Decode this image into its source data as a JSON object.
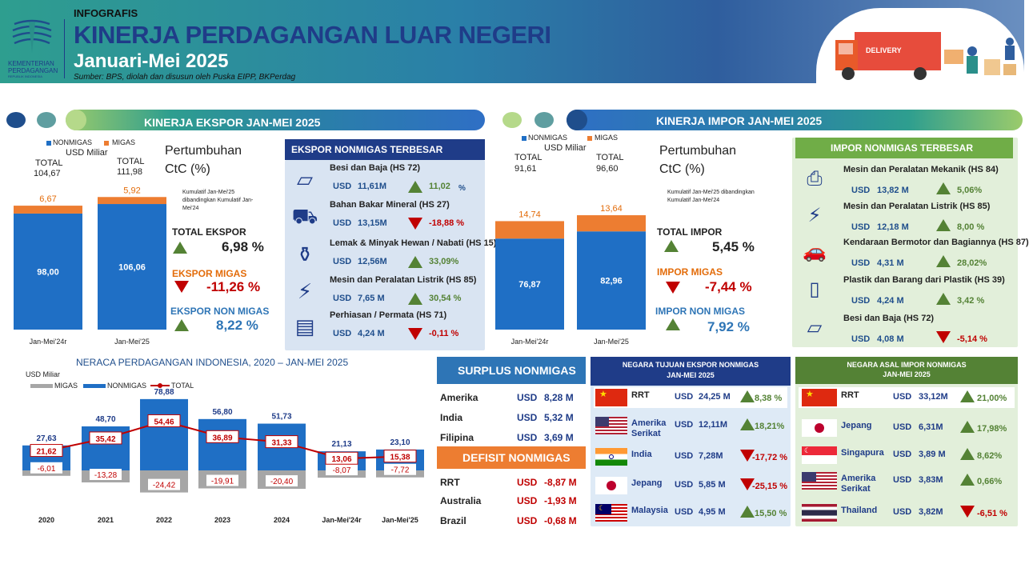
{
  "header": {
    "kicker": "INFOGRAFIS",
    "title": "KINERJA PERDAGANGAN LUAR NEGERI",
    "subtitle": "Januari-Mei 2025",
    "source": "Sumber: BPS, diolah dan disusun oleh Puska EIPP, BKPerdag",
    "logo_text": [
      "KEMENTERIAN",
      "PERDAGANGAN",
      "REPUBLIK INDONESIA"
    ],
    "truck_label": "DELIVERY",
    "colors": {
      "teal": "#2A8F8A",
      "navy": "#1F3C88"
    }
  },
  "ekspor": {
    "banner": "KINERJA EKSPOR JAN-MEI 2025",
    "legend": {
      "nonmigas": "NONMIGAS",
      "migas": "MIGAS",
      "unit": "USD Miliar"
    },
    "totals": [
      {
        "label": "TOTAL",
        "value": "104,67"
      },
      {
        "label": "TOTAL",
        "value": "111,98"
      }
    ],
    "pertumbuhan_title": [
      "Pertumbuhan",
      "CtC (%)"
    ],
    "note": "Kumulatif Jan-Mei'25 dibandingkan Kumulatif Jan-Mei'24",
    "total_label": "TOTAL EKSPOR",
    "total_value": "6,98 %",
    "migas_label": "EKSPOR MIGAS",
    "migas_value": "-11,26 %",
    "nonmigas_label": "EKSPOR NON MIGAS",
    "nonmigas_value": "8,22 %"
  },
  "ekspor_top": {
    "title": "EKSPOR NONMIGAS TERBESAR",
    "items": [
      {
        "name": "Besi dan Baja (HS 72)",
        "usd": "USD",
        "val": "11,61M",
        "pct": "11,02",
        "pct_suffix": "%",
        "dir": "up",
        "icon": "steel-icon"
      },
      {
        "name": "Bahan Bakar Mineral (HS 27)",
        "usd": "USD",
        "val": "13,15M",
        "pct": "-18,88 %",
        "pct_suffix": "",
        "dir": "down",
        "icon": "coal-cart-icon"
      },
      {
        "name": "Lemak & Minyak Hewan / Nabati (HS 15)",
        "usd": "USD",
        "val": "12,56M",
        "pct": "33,09%",
        "pct_suffix": "",
        "dir": "up",
        "icon": "oil-bottle-icon"
      },
      {
        "name": "Mesin dan Peralatan Listrik (HS 85)",
        "usd": "USD",
        "val": "7,65 M",
        "pct": "30,54 %",
        "pct_suffix": "",
        "dir": "up",
        "icon": "electric-plug-icon"
      },
      {
        "name": "Perhiasan / Permata (HS 71)",
        "usd": "USD",
        "val": "4,24 M",
        "pct": "-0,11 %",
        "pct_suffix": "",
        "dir": "down",
        "icon": "gold-bars-icon"
      }
    ]
  },
  "impor": {
    "banner": "KINERJA IMPOR JAN-MEI 2025",
    "legend": {
      "nonmigas": "NONMIGAS",
      "migas": "MIGAS",
      "unit": "USD Miliar"
    },
    "totals": [
      {
        "label": "TOTAL",
        "value": "91,61"
      },
      {
        "label": "TOTAL",
        "value": "96,60"
      }
    ],
    "pertumbuhan_title": [
      "Pertumbuhan",
      "CtC (%)"
    ],
    "note": "Kumulatif Jan-Mei'25 dibandingkan Kumulatif Jan-Mei'24",
    "total_label": "TOTAL IMPOR",
    "total_value": "5,45 %",
    "migas_label": "IMPOR MIGAS",
    "migas_value": "-7,44 %",
    "nonmigas_label": "IMPOR NON MIGAS",
    "nonmigas_value": "7,92 %"
  },
  "impor_top": {
    "title": "IMPOR NONMIGAS TERBESAR",
    "items": [
      {
        "name": "Mesin dan Peralatan Mekanik (HS 84)",
        "usd": "USD",
        "val": "13,82 M",
        "pct": "5,06%",
        "dir": "up",
        "icon": "printer-machine-icon"
      },
      {
        "name": "Mesin dan Peralatan Listrik (HS 85)",
        "usd": "USD",
        "val": "12,18 M",
        "pct": "8,00 %",
        "dir": "up",
        "icon": "electric-plug-icon"
      },
      {
        "name": "Kendaraan Bermotor dan Bagiannya (HS 87)",
        "usd": "USD",
        "val": "4,31 M",
        "pct": "28,02%",
        "dir": "up",
        "icon": "car-icon"
      },
      {
        "name": "Plastik dan Barang dari Plastik (HS 39)",
        "usd": "USD",
        "val": "4,24 M",
        "pct": "3,42 %",
        "dir": "up",
        "icon": "plastic-bottles-icon"
      },
      {
        "name": "Besi dan Baja (HS 72)",
        "usd": "USD",
        "val": "4,08 M",
        "pct": "-5,14 %",
        "dir": "down",
        "icon": "steel-icon"
      }
    ]
  },
  "neraca": {
    "title": "NERACA PERDAGANGAN INDONESIA, 2020  – JAN-MEI 2025",
    "unit": "USD Miliar",
    "legend": {
      "migas": "MIGAS",
      "nonmigas": "NONMIGAS",
      "total": "TOTAL"
    }
  },
  "surplus": {
    "title": "SURPLUS NONMIGAS",
    "rows": [
      {
        "c": "Amerika",
        "u": "USD",
        "v": "8,28 M"
      },
      {
        "c": "India",
        "u": "USD",
        "v": "5,32 M"
      },
      {
        "c": "Filipina",
        "u": "USD",
        "v": "3,69 M"
      }
    ]
  },
  "defisit": {
    "title": "DEFISIT NONMIGAS",
    "rows": [
      {
        "c": "RRT",
        "u": "USD",
        "v": "-8,87 M"
      },
      {
        "c": "Australia",
        "u": "USD",
        "v": "-1,93 M"
      },
      {
        "c": "Brazil",
        "u": "USD",
        "v": "-0,68 M"
      }
    ]
  },
  "tujuan": {
    "title": [
      "NEGARA TUJUAN EKSPOR NONMIGAS",
      "JAN-MEI 2025"
    ],
    "rows": [
      {
        "c": "RRT",
        "u": "USD",
        "v": "24,25 M",
        "p": "8,38 %",
        "dir": "up",
        "flag": "china"
      },
      {
        "c": "Amerika Serikat",
        "u": "USD",
        "v": "12,11M",
        "p": "18,21%",
        "dir": "up",
        "flag": "usa"
      },
      {
        "c": "India",
        "u": "USD",
        "v": "7,28M",
        "p": "-17,72 %",
        "dir": "down",
        "flag": "india"
      },
      {
        "c": "Jepang",
        "u": "USD",
        "v": "5,85 M",
        "p": "-25,15 %",
        "dir": "down",
        "flag": "japan"
      },
      {
        "c": "Malaysia",
        "u": "USD",
        "v": "4,95 M",
        "p": "15,50 %",
        "dir": "up",
        "flag": "malaysia"
      }
    ]
  },
  "asal": {
    "title": [
      "NEGARA ASAL IMPOR NONMIGAS",
      "JAN-MEI 2025"
    ],
    "rows": [
      {
        "c": "RRT",
        "u": "USD",
        "v": "33,12M",
        "p": "21,00%",
        "dir": "up",
        "flag": "china"
      },
      {
        "c": "Jepang",
        "u": "USD",
        "v": "6,31M",
        "p": "17,98%",
        "dir": "up",
        "flag": "japan"
      },
      {
        "c": "Singapura",
        "u": "USD",
        "v": "3,89 M",
        "p": "8,62%",
        "dir": "up",
        "flag": "singapore"
      },
      {
        "c": "Amerika Serikat",
        "u": "USD",
        "v": "3,83M",
        "p": "0,66%",
        "dir": "up",
        "flag": "usa"
      },
      {
        "c": "Thailand",
        "u": "USD",
        "v": "3,82M",
        "p": "-6,51 %",
        "dir": "down",
        "flag": "thailand"
      }
    ]
  },
  "chart_data": [
    {
      "type": "bar",
      "title": "",
      "categories": [
        "Jan-Mei'24r",
        "Jan-Mei'25"
      ],
      "series": [
        {
          "name": "NONMIGAS",
          "values": [
            98.0,
            106.06
          ],
          "labels": [
            "98,00",
            "106,06"
          ]
        },
        {
          "name": "MIGAS",
          "values": [
            6.67,
            5.92
          ],
          "labels": [
            "6,67",
            "5,92"
          ]
        }
      ],
      "stacked": true,
      "colors": {
        "NONMIGAS": "#1F6FC5",
        "MIGAS": "#ED7D31"
      }
    },
    {
      "type": "bar",
      "title": "",
      "categories": [
        "Jan-Mei'24r",
        "Jan-Mei'25"
      ],
      "series": [
        {
          "name": "NONMIGAS",
          "values": [
            76.87,
            82.96
          ],
          "labels": [
            "76,87",
            "82,96"
          ]
        },
        {
          "name": "MIGAS",
          "values": [
            14.74,
            13.64
          ],
          "labels": [
            "14,74",
            "13,64"
          ]
        }
      ],
      "stacked": true,
      "colors": {
        "NONMIGAS": "#1F6FC5",
        "MIGAS": "#ED7D31"
      }
    },
    {
      "type": "bar",
      "title": "NERACA PERDAGANGAN INDONESIA, 2020  – JAN-MEI 2025",
      "categories": [
        "2020",
        "2021",
        "2022",
        "2023",
        "2024",
        "Jan-Mei'24r",
        "Jan-Mei'25"
      ],
      "series": [
        {
          "name": "MIGAS",
          "values": [
            -6.01,
            -13.28,
            -24.42,
            -19.91,
            -20.4,
            -8.07,
            -7.72
          ],
          "labels": [
            "-6,01",
            "-13,28",
            "-24,42",
            "-19,91",
            "-20,40",
            "-8,07",
            "-7,72"
          ]
        },
        {
          "name": "NONMIGAS",
          "values": [
            27.63,
            48.7,
            78.88,
            56.8,
            51.73,
            21.13,
            23.1
          ],
          "labels": [
            "27,63",
            "48,70",
            "78,88",
            "56,80",
            "51,73",
            "21,13",
            "23,10"
          ]
        },
        {
          "name": "TOTAL",
          "type": "line",
          "values": [
            21.62,
            35.42,
            54.46,
            36.89,
            31.33,
            13.06,
            15.38
          ],
          "labels": [
            "21,62",
            "35,42",
            "54,46",
            "36,89",
            "31,33",
            "13,06",
            "15,38"
          ]
        }
      ],
      "colors": {
        "MIGAS": "#A6A6A6",
        "NONMIGAS": "#1F6FC5",
        "TOTAL": "#C00000"
      }
    }
  ]
}
